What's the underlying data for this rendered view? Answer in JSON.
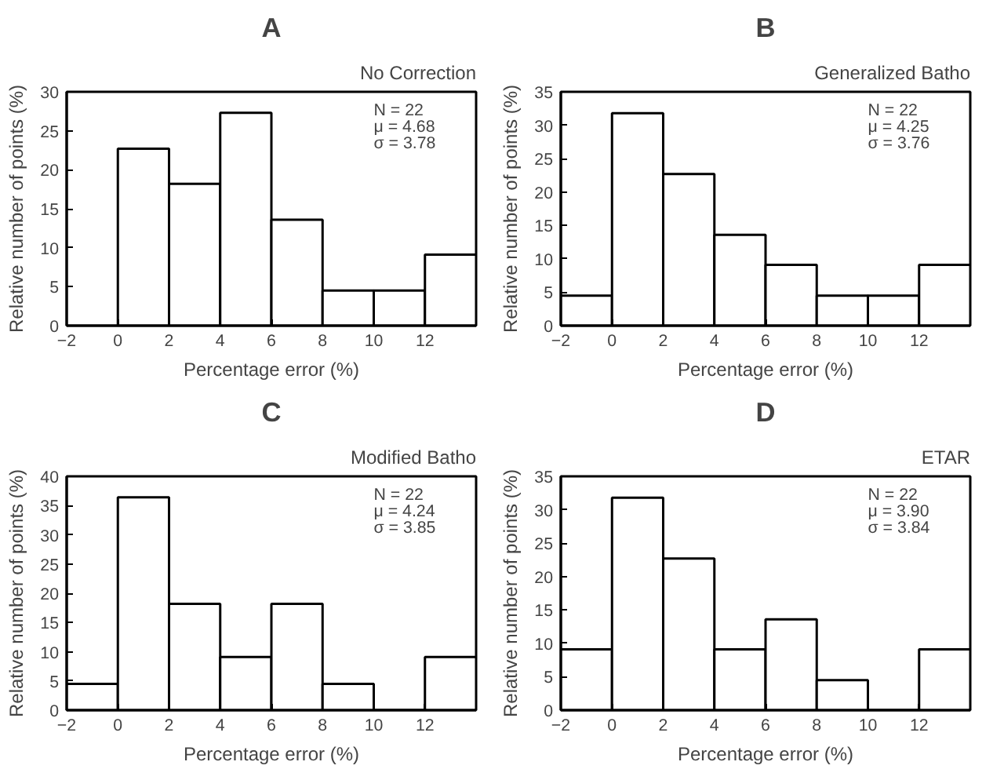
{
  "chart_data": [
    {
      "type": "histogram",
      "title": "A",
      "subtitle": "No Correction",
      "xlabel": "Percentage error (%)",
      "ylabel": "Relative number of points (%)",
      "bins": [
        0,
        2,
        4,
        6,
        8,
        10,
        12,
        14
      ],
      "values": [
        22.7,
        18.2,
        27.3,
        13.6,
        4.5,
        4.5,
        9.1
      ],
      "color": "#ffffff",
      "xlim": [
        -2,
        14
      ],
      "xticks": [
        -2,
        0,
        2,
        4,
        6,
        8,
        10,
        12
      ],
      "ylim": [
        0,
        30
      ],
      "yticks": [
        0,
        5,
        10,
        15,
        20,
        25,
        30
      ],
      "annotations": [
        "N = 22",
        "μ = 4.68",
        "σ = 3.78"
      ],
      "grid": false
    },
    {
      "type": "histogram",
      "title": "B",
      "subtitle": "Generalized Batho",
      "xlabel": "Percentage error (%)",
      "ylabel": "Relative number of points (%)",
      "bins": [
        -2,
        0,
        2,
        4,
        6,
        8,
        10,
        12,
        14
      ],
      "values": [
        4.5,
        31.8,
        22.7,
        13.6,
        9.1,
        4.5,
        4.5,
        9.1
      ],
      "color": "#ffffff",
      "xlim": [
        -2,
        14
      ],
      "xticks": [
        -2,
        0,
        2,
        4,
        6,
        8,
        10,
        12
      ],
      "ylim": [
        0,
        35
      ],
      "yticks": [
        0,
        5,
        10,
        15,
        20,
        25,
        30,
        35
      ],
      "annotations": [
        "N = 22",
        "μ = 4.25",
        "σ = 3.76"
      ],
      "grid": false
    },
    {
      "type": "histogram",
      "title": "C",
      "subtitle": "Modified Batho",
      "xlabel": "Percentage error (%)",
      "ylabel": "Relative number of points (%)",
      "bins": [
        -2,
        0,
        2,
        4,
        6,
        8,
        10,
        12,
        14
      ],
      "values": [
        4.5,
        36.4,
        18.2,
        9.1,
        18.2,
        4.5,
        0,
        9.1
      ],
      "color": "#ffffff",
      "xlim": [
        -2,
        14
      ],
      "xticks": [
        -2,
        0,
        2,
        4,
        6,
        8,
        10,
        12
      ],
      "ylim": [
        0,
        40
      ],
      "yticks": [
        0,
        5,
        10,
        15,
        20,
        25,
        30,
        35,
        40
      ],
      "annotations": [
        "N = 22",
        "μ = 4.24",
        "σ = 3.85"
      ],
      "grid": false
    },
    {
      "type": "histogram",
      "title": "D",
      "subtitle": "ETAR",
      "xlabel": "Percentage error (%)",
      "ylabel": "Relative number of points (%)",
      "bins": [
        -2,
        0,
        2,
        4,
        6,
        8,
        10,
        12,
        14
      ],
      "values": [
        9.1,
        31.8,
        22.7,
        9.1,
        13.6,
        4.5,
        0,
        9.1
      ],
      "color": "#ffffff",
      "xlim": [
        -2,
        14
      ],
      "xticks": [
        -2,
        0,
        2,
        4,
        6,
        8,
        10,
        12
      ],
      "ylim": [
        0,
        35
      ],
      "yticks": [
        0,
        5,
        10,
        15,
        20,
        25,
        30,
        35
      ],
      "annotations": [
        "N = 22",
        "μ = 3.90",
        "σ = 3.84"
      ],
      "grid": false
    }
  ]
}
